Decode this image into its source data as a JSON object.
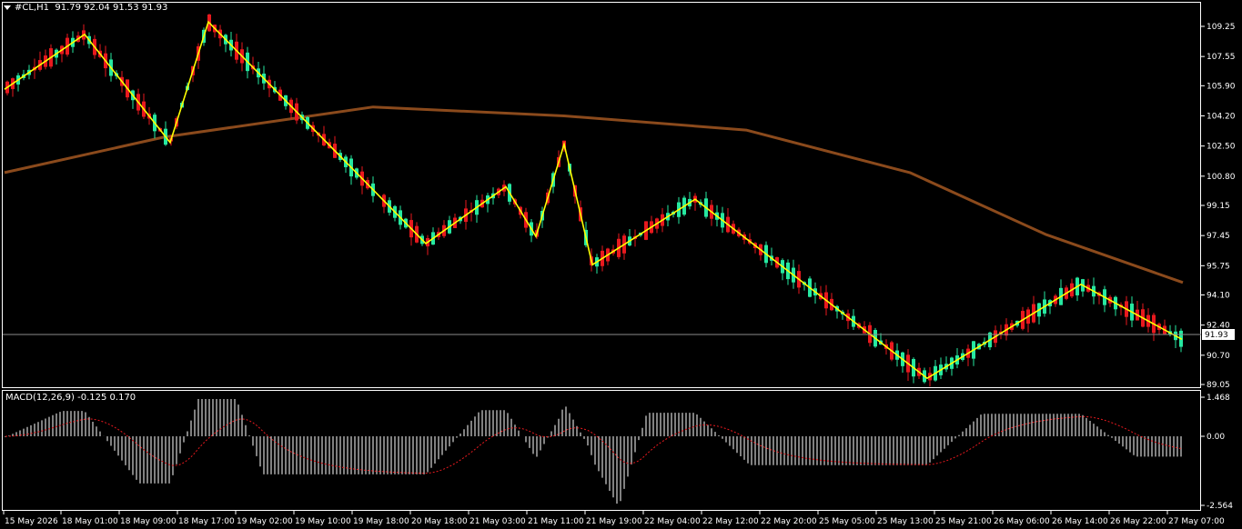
{
  "header": {
    "symbol_line": "#CL,H1",
    "ohlc": "91.79 92.04 91.53 91.93"
  },
  "macd": {
    "label": "MACD(12,26,9) -0.125 0.170",
    "ticks": [
      "1.468",
      "0.00",
      "-2.564"
    ]
  },
  "price_axis": {
    "ticks": [
      "109.25",
      "107.55",
      "105.90",
      "104.20",
      "102.50",
      "100.80",
      "99.15",
      "97.45",
      "95.75",
      "94.10",
      "92.40",
      "90.70",
      "89.05"
    ],
    "current_price": "91.93"
  },
  "time_axis": {
    "labels": [
      "15 May 2026",
      "18 May 01:00",
      "18 May 09:00",
      "18 May 17:00",
      "19 May 02:00",
      "19 May 10:00",
      "19 May 18:00",
      "20 May 18:00",
      "21 May 03:00",
      "21 May 11:00",
      "21 May 19:00",
      "22 May 04:00",
      "22 May 12:00",
      "22 May 20:00",
      "25 May 05:00",
      "25 May 13:00",
      "25 May 21:00",
      "26 May 06:00",
      "26 May 14:00",
      "26 May 22:00",
      "27 May 07:00"
    ]
  },
  "colors": {
    "background": "#000000",
    "bull": "#26e8a0",
    "bear": "#e8191e",
    "zigzag": "#ffff00",
    "moving_average": "#8b4a1c",
    "macd_signal": "#e8191e",
    "macd_hist": "#ffffff",
    "grid_text": "#ffffff"
  },
  "chart_data": {
    "type": "candlestick",
    "symbol": "#CL",
    "timeframe": "H1",
    "ylim": [
      88.4,
      110.6
    ],
    "zigzag": [
      {
        "x": "15 May 2026",
        "y": 105.7
      },
      {
        "x": "18 May 01:00",
        "y": 108.8
      },
      {
        "x": "18 May 09:00",
        "y": 102.7
      },
      {
        "x": "18 May 17:00",
        "y": 109.5
      },
      {
        "x": "20 May 18:00",
        "y": 97.0
      },
      {
        "x": "21 May 03:00",
        "y": 100.2
      },
      {
        "x": "21 May 03:00",
        "y": 97.4
      },
      {
        "x": "21 May 11:00",
        "y": 102.6
      },
      {
        "x": "21 May 19:00",
        "y": 95.8
      },
      {
        "x": "22 May 04:00",
        "y": 99.5
      },
      {
        "x": "25 May 13:00",
        "y": 89.4
      },
      {
        "x": "26 May 14:00",
        "y": 94.7
      },
      {
        "x": "27 May 07:00",
        "y": 91.6
      }
    ],
    "moving_average_levels": [
      101.0,
      103.0,
      104.7,
      104.2,
      103.4,
      101.0,
      97.5,
      94.8
    ],
    "macd_signal_range": [
      -2.564,
      1.468
    ]
  }
}
